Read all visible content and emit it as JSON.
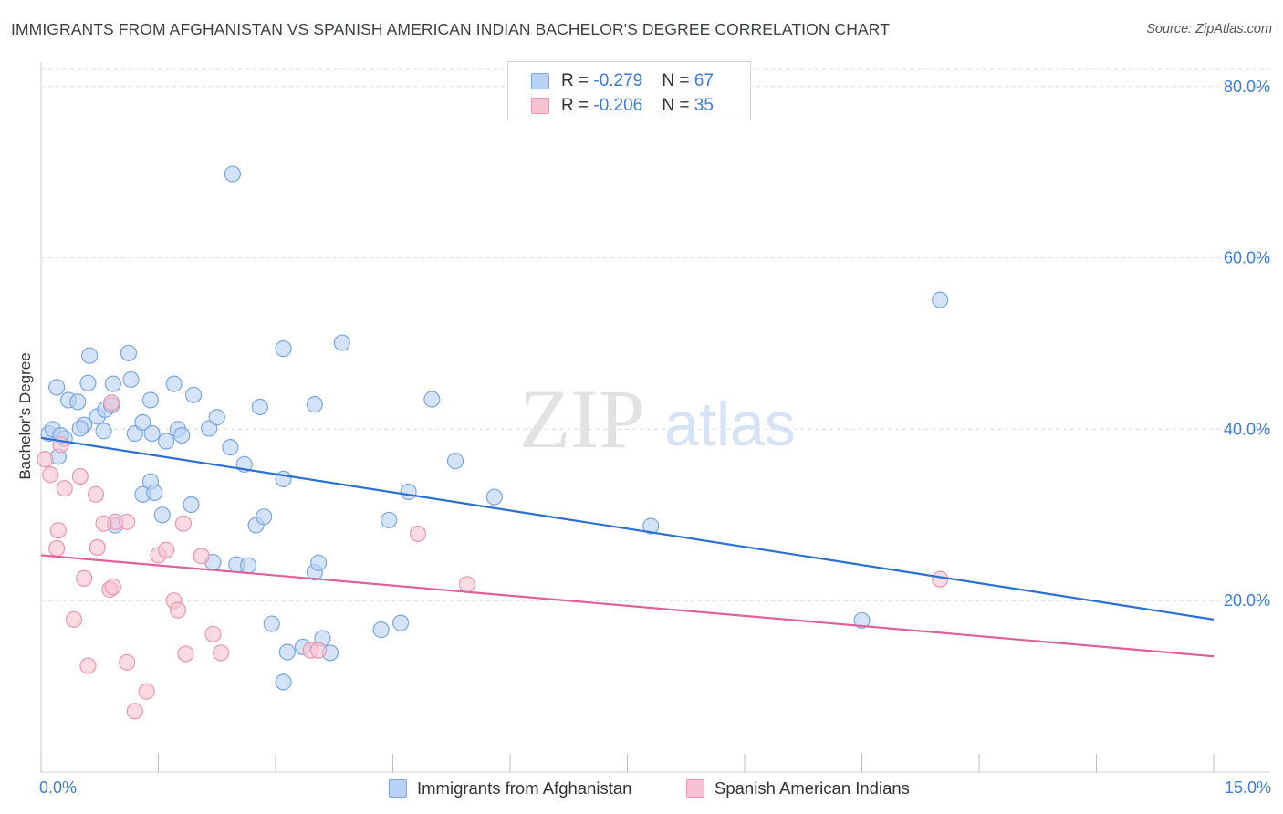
{
  "title": "IMMIGRANTS FROM AFGHANISTAN VS SPANISH AMERICAN INDIAN BACHELOR'S DEGREE CORRELATION CHART",
  "source": "Source: ZipAtlas.com",
  "watermark": {
    "zip": "ZIP",
    "atlas": "atlas"
  },
  "colors": {
    "blue_fill": "#b8d1f4",
    "blue_stroke": "#7aa7e3",
    "blue_line": "#2a6fd4",
    "pink_fill": "#f7c3d2",
    "pink_stroke": "#eb95b0",
    "pink_line": "#e0609a",
    "tick_label": "#3b7dd8",
    "grid": "#dcdcdc"
  },
  "legend": {
    "series1": {
      "r_label": "R = ",
      "r_value": "-0.279",
      "n_label": "N = ",
      "n_value": "67"
    },
    "series2": {
      "r_label": "R = ",
      "r_value": "-0.206",
      "n_label": "N = ",
      "n_value": "35"
    }
  },
  "chart_data": {
    "type": "scatter",
    "title": "IMMIGRANTS FROM AFGHANISTAN VS SPANISH AMERICAN INDIAN BACHELOR'S DEGREE CORRELATION CHART",
    "xlabel": "",
    "ylabel": "Bachelor's Degree",
    "xlim": [
      0,
      15
    ],
    "ylim": [
      0,
      82
    ],
    "x_tick_labels": [
      {
        "value": 0,
        "label": "0.0%"
      },
      {
        "value": 15,
        "label": "15.0%"
      }
    ],
    "y_tick_labels": [
      {
        "value": 20,
        "label": "20.0%"
      },
      {
        "value": 40,
        "label": "40.0%"
      },
      {
        "value": 60,
        "label": "60.0%"
      },
      {
        "value": 80,
        "label": "80.0%"
      }
    ],
    "grid": true,
    "series": [
      {
        "name": "Immigrants from Afghanistan",
        "color": "blue",
        "trend": {
          "x": [
            0,
            15
          ],
          "y": [
            39.0,
            17.8
          ]
        },
        "points": [
          [
            0.1,
            39.5
          ],
          [
            0.15,
            40.0
          ],
          [
            0.22,
            36.8
          ],
          [
            0.3,
            38.9
          ],
          [
            0.2,
            44.9
          ],
          [
            0.35,
            43.4
          ],
          [
            0.47,
            43.2
          ],
          [
            0.55,
            40.5
          ],
          [
            0.62,
            48.6
          ],
          [
            0.72,
            41.5
          ],
          [
            0.82,
            42.3
          ],
          [
            0.9,
            42.8
          ],
          [
            0.6,
            45.4
          ],
          [
            0.92,
            45.3
          ],
          [
            1.12,
            48.9
          ],
          [
            1.15,
            45.8
          ],
          [
            0.8,
            39.8
          ],
          [
            1.2,
            39.5
          ],
          [
            1.3,
            40.8
          ],
          [
            1.4,
            43.4
          ],
          [
            1.42,
            39.5
          ],
          [
            1.4,
            33.9
          ],
          [
            1.3,
            32.4
          ],
          [
            1.45,
            32.6
          ],
          [
            1.6,
            38.6
          ],
          [
            1.7,
            45.3
          ],
          [
            1.75,
            40.0
          ],
          [
            1.8,
            39.3
          ],
          [
            1.95,
            44.0
          ],
          [
            2.15,
            40.1
          ],
          [
            2.25,
            41.4
          ],
          [
            1.55,
            30.0
          ],
          [
            1.92,
            31.2
          ],
          [
            0.95,
            28.8
          ],
          [
            2.45,
            69.8
          ],
          [
            2.42,
            37.9
          ],
          [
            2.6,
            35.9
          ],
          [
            2.2,
            24.5
          ],
          [
            2.5,
            24.2
          ],
          [
            2.65,
            24.1
          ],
          [
            2.75,
            28.8
          ],
          [
            2.85,
            29.8
          ],
          [
            2.8,
            42.6
          ],
          [
            3.1,
            49.4
          ],
          [
            3.1,
            34.2
          ],
          [
            3.5,
            42.9
          ],
          [
            3.5,
            23.3
          ],
          [
            3.55,
            24.4
          ],
          [
            3.85,
            50.1
          ],
          [
            4.45,
            29.4
          ],
          [
            4.7,
            32.7
          ],
          [
            5.0,
            43.5
          ],
          [
            5.3,
            36.3
          ],
          [
            5.8,
            32.1
          ],
          [
            7.8,
            28.7
          ],
          [
            11.5,
            55.1
          ],
          [
            10.5,
            17.7
          ],
          [
            2.95,
            17.3
          ],
          [
            3.15,
            14.0
          ],
          [
            3.35,
            14.6
          ],
          [
            3.6,
            15.6
          ],
          [
            3.7,
            13.9
          ],
          [
            4.35,
            16.6
          ],
          [
            4.6,
            17.4
          ],
          [
            3.1,
            10.5
          ],
          [
            0.5,
            40.1
          ],
          [
            0.25,
            39.3
          ]
        ]
      },
      {
        "name": "Spanish American Indians",
        "color": "pink",
        "trend": {
          "x": [
            0,
            15
          ],
          "y": [
            25.3,
            13.5
          ]
        },
        "points": [
          [
            0.05,
            36.5
          ],
          [
            0.12,
            34.7
          ],
          [
            0.25,
            38.2
          ],
          [
            0.2,
            26.1
          ],
          [
            0.3,
            33.1
          ],
          [
            0.22,
            28.2
          ],
          [
            0.5,
            34.5
          ],
          [
            0.72,
            26.2
          ],
          [
            0.7,
            32.4
          ],
          [
            0.55,
            22.6
          ],
          [
            0.42,
            17.8
          ],
          [
            0.6,
            12.4
          ],
          [
            0.9,
            43.1
          ],
          [
            0.95,
            29.2
          ],
          [
            1.1,
            29.2
          ],
          [
            0.8,
            29.0
          ],
          [
            0.88,
            21.3
          ],
          [
            0.92,
            21.6
          ],
          [
            1.1,
            12.8
          ],
          [
            1.35,
            9.4
          ],
          [
            1.2,
            7.1
          ],
          [
            1.5,
            25.3
          ],
          [
            1.6,
            25.9
          ],
          [
            1.82,
            29.0
          ],
          [
            1.7,
            20.0
          ],
          [
            1.75,
            18.9
          ],
          [
            1.85,
            13.8
          ],
          [
            2.05,
            25.2
          ],
          [
            2.2,
            16.1
          ],
          [
            2.3,
            13.9
          ],
          [
            3.45,
            14.2
          ],
          [
            3.55,
            14.2
          ],
          [
            4.82,
            27.8
          ],
          [
            5.45,
            21.9
          ],
          [
            11.5,
            22.5
          ]
        ]
      }
    ]
  },
  "bottom_legend": {
    "series1_label": "Immigrants from Afghanistan",
    "series2_label": "Spanish American Indians"
  }
}
